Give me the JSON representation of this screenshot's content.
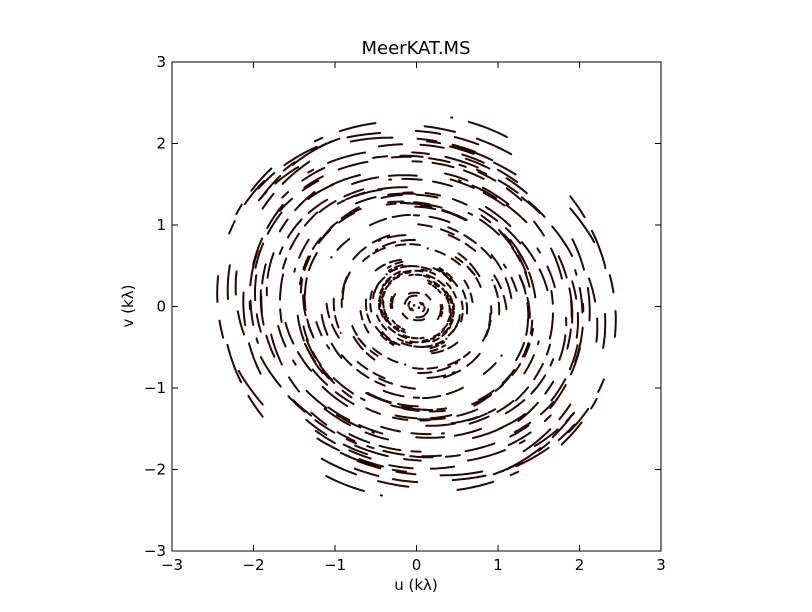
{
  "chart_data": {
    "type": "scatter",
    "title": "MeerKAT.MS",
    "xlabel": "u (kλ)",
    "ylabel": "v (kλ)",
    "xlim": [
      -3,
      3
    ],
    "ylim": [
      -3,
      3
    ],
    "xticks": [
      -3,
      -2,
      -1,
      0,
      1,
      2,
      3
    ],
    "yticks": [
      -3,
      -2,
      -1,
      0,
      1,
      2,
      3
    ],
    "xtick_labels": [
      "−3",
      "−2",
      "−1",
      "0",
      "1",
      "2",
      "3"
    ],
    "ytick_labels": [
      "−3",
      "−2",
      "−1",
      "0",
      "1",
      "2",
      "3"
    ],
    "grid": false,
    "legend": "none",
    "series": [
      {
        "marker_color": "#2a0606",
        "description": "uv-coverage arc tracks (symmetric baseline pairs)",
        "max_radius_klambda": 2.6
      }
    ]
  }
}
